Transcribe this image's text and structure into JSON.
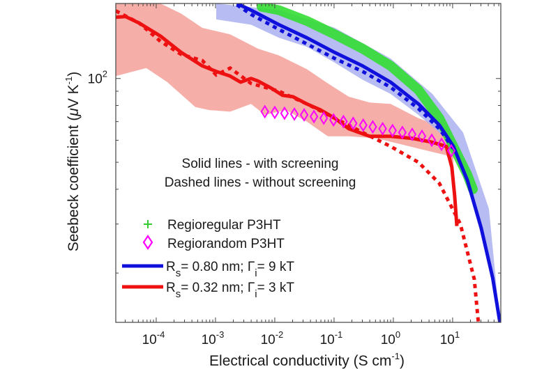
{
  "chart_data": {
    "type": "line",
    "xscale": "log",
    "yscale": "log",
    "xlabel": "Electrical conductivity (S cm",
    "xlabel_sup": "-1",
    "xlabel_close": ")",
    "ylabel": "Seebeck coefficient (",
    "ylabel_mu": "μ",
    "ylabel_unit": "V K",
    "ylabel_sup": "-1",
    "ylabel_close": ")",
    "xlim": [
      2.08e-05,
      65
    ],
    "ylim": [
      13.3,
      186
    ],
    "x_ticks": [
      {
        "value": 0.0001,
        "base": "10",
        "exp": "-4"
      },
      {
        "value": 0.001,
        "base": "10",
        "exp": "-3"
      },
      {
        "value": 0.01,
        "base": "10",
        "exp": "-2"
      },
      {
        "value": 0.1,
        "base": "10",
        "exp": "-1"
      },
      {
        "value": 1,
        "base": "10",
        "exp": "0"
      },
      {
        "value": 10,
        "base": "10",
        "exp": "1"
      }
    ],
    "y_ticks": [
      {
        "value": 100,
        "base": "10",
        "exp": "2"
      }
    ],
    "annotations": [
      "Solid lines - with screening",
      "Dashed lines - without screening"
    ],
    "legend": {
      "placement": "bottom-left",
      "entries": [
        {
          "label": "Regioregular  P3HT",
          "marker": "plus",
          "color": "#33cc33"
        },
        {
          "label": "Regiorandom P3HT",
          "marker": "diamond",
          "color": "#ff00ff"
        },
        {
          "label_pre": "R",
          "label_sub1": "s",
          "label_mid": "= 0.80 nm; Γ",
          "label_sub2": "i",
          "label_post": "= 9 kT",
          "marker": "line",
          "color": "#1010dd"
        },
        {
          "label_pre": "R",
          "label_sub1": "s",
          "label_mid": "= 0.32 nm; Γ",
          "label_sub2": "i",
          "label_post": "= 3 kT",
          "marker": "line",
          "color": "#ee1111"
        }
      ]
    },
    "series": [
      {
        "name": "Red band (Rs=0.32 nm)",
        "kind": "band",
        "color": "#f4a09a",
        "upper": [
          [
            2.08e-05,
            186
          ],
          [
            0.000118,
            186
          ],
          [
            0.000265,
            171
          ],
          [
            0.000598,
            152
          ],
          [
            0.00177,
            144
          ],
          [
            0.0052,
            128
          ],
          [
            0.0118,
            121
          ],
          [
            0.0348,
            108
          ],
          [
            0.0785,
            96
          ],
          [
            0.177,
            86
          ],
          [
            0.398,
            82
          ],
          [
            0.9,
            81
          ],
          [
            2.65,
            72
          ],
          [
            7.84,
            66
          ],
          [
            10.3,
            57
          ]
        ],
        "lower": [
          [
            2.08e-05,
            102
          ],
          [
            6.8e-05,
            109
          ],
          [
            0.000154,
            97
          ],
          [
            0.000456,
            79
          ],
          [
            0.000784,
            77
          ],
          [
            0.00177,
            76
          ],
          [
            0.00398,
            81
          ],
          [
            0.0068,
            74
          ],
          [
            0.0155,
            77
          ],
          [
            0.0348,
            70
          ],
          [
            0.0785,
            62
          ],
          [
            0.177,
            62
          ],
          [
            0.52,
            61
          ],
          [
            2.65,
            56
          ],
          [
            7.84,
            53
          ],
          [
            10.3,
            48
          ]
        ]
      },
      {
        "name": "Blue band (Rs=0.80 nm)",
        "kind": "band",
        "color": "#aab0f0",
        "upper": [
          [
            0.00103,
            186
          ],
          [
            0.0118,
            176
          ],
          [
            0.103,
            152
          ],
          [
            0.9,
            118
          ],
          [
            4.56,
            88
          ],
          [
            15,
            64
          ],
          [
            41,
            34
          ],
          [
            62.8,
            13.3
          ]
        ],
        "lower": [
          [
            0.00103,
            163
          ],
          [
            0.00398,
            156
          ],
          [
            0.0118,
            140
          ],
          [
            0.0348,
            130
          ],
          [
            0.103,
            114
          ],
          [
            0.303,
            99
          ],
          [
            0.9,
            88
          ],
          [
            2.65,
            74
          ],
          [
            7.84,
            61
          ],
          [
            15,
            48
          ],
          [
            30,
            30
          ],
          [
            62.8,
            13.3
          ]
        ]
      },
      {
        "name": "Regioregular P3HT",
        "kind": "markers-band",
        "color": "#33dd33",
        "points": [
          [
            0.00599,
            181
          ],
          [
            0.0118,
            176
          ],
          [
            0.0348,
            161
          ],
          [
            0.103,
            144
          ],
          [
            0.303,
            128
          ],
          [
            0.9,
            111
          ],
          [
            2.65,
            91
          ],
          [
            5.97,
            72
          ],
          [
            10.3,
            57
          ],
          [
            17.8,
            45
          ],
          [
            22,
            40
          ]
        ]
      },
      {
        "name": "Rs=0.80 nm solid",
        "kind": "solid",
        "color": "#1010dd",
        "points": [
          [
            0.0023,
            186
          ],
          [
            0.00398,
            176
          ],
          [
            0.0118,
            156
          ],
          [
            0.0348,
            140
          ],
          [
            0.103,
            124
          ],
          [
            0.303,
            111
          ],
          [
            0.9,
            97
          ],
          [
            2.65,
            81
          ],
          [
            5.97,
            68
          ],
          [
            10.3,
            57
          ],
          [
            17.8,
            43
          ],
          [
            30.4,
            29
          ],
          [
            47.5,
            19.2
          ],
          [
            62.8,
            13.3
          ]
        ]
      },
      {
        "name": "Rs=0.80 nm dashed",
        "kind": "dashed",
        "color": "#1010dd",
        "points": [
          [
            0.0023,
            184
          ],
          [
            0.00398,
            170
          ],
          [
            0.0118,
            150
          ],
          [
            0.0348,
            133
          ],
          [
            0.103,
            118
          ],
          [
            0.303,
            106
          ],
          [
            0.9,
            93
          ],
          [
            2.65,
            78
          ],
          [
            5.97,
            66
          ],
          [
            10.3,
            56
          ]
        ]
      },
      {
        "name": "Rs=0.32 nm solid",
        "kind": "solid",
        "color": "#ee1111",
        "points": [
          [
            2.08e-05,
            166
          ],
          [
            3.03e-05,
            167
          ],
          [
            5.2e-05,
            158
          ],
          [
            0.000118,
            142
          ],
          [
            0.000265,
            124
          ],
          [
            0.000598,
            111
          ],
          [
            0.00103,
            106
          ],
          [
            0.00177,
            102
          ],
          [
            0.00265,
            97
          ],
          [
            0.00398,
            100
          ],
          [
            0.0052,
            98
          ],
          [
            0.00897,
            92
          ],
          [
            0.0135,
            87
          ],
          [
            0.0202,
            86
          ],
          [
            0.0348,
            81
          ],
          [
            0.0598,
            77
          ],
          [
            0.103,
            72
          ],
          [
            0.177,
            66
          ],
          [
            0.398,
            62
          ],
          [
            0.9,
            62
          ],
          [
            2.02,
            61
          ],
          [
            4.56,
            59
          ],
          [
            7.84,
            57
          ],
          [
            9.7,
            48
          ],
          [
            10.8,
            38
          ],
          [
            11.8,
            29.5
          ]
        ]
      },
      {
        "name": "Rs=0.32 nm dashed",
        "kind": "dashed",
        "color": "#ee1111",
        "points": [
          [
            2.08e-05,
            175
          ],
          [
            5.2e-05,
            158
          ],
          [
            0.000118,
            136
          ],
          [
            0.000265,
            122
          ],
          [
            0.000598,
            116
          ],
          [
            0.00103,
            103
          ],
          [
            0.00177,
            109
          ],
          [
            0.00398,
            96
          ],
          [
            0.0118,
            90
          ],
          [
            0.0348,
            81
          ],
          [
            0.103,
            72
          ],
          [
            0.303,
            64
          ],
          [
            0.9,
            57
          ],
          [
            2.65,
            50
          ],
          [
            5.97,
            42
          ],
          [
            13.5,
            30
          ],
          [
            23.2,
            19
          ],
          [
            27.2,
            13.3
          ]
        ]
      },
      {
        "name": "Regiorandom P3HT",
        "kind": "diamonds",
        "color": "#ff00ff",
        "points": [
          [
            0.0068,
            76
          ],
          [
            0.01,
            75.5
          ],
          [
            0.0146,
            75
          ],
          [
            0.0214,
            74.5
          ],
          [
            0.0313,
            74
          ],
          [
            0.0458,
            73
          ],
          [
            0.067,
            72
          ],
          [
            0.098,
            71
          ],
          [
            0.144,
            70
          ],
          [
            0.21,
            69
          ],
          [
            0.31,
            68
          ],
          [
            0.45,
            67
          ],
          [
            0.66,
            66
          ],
          [
            0.97,
            65
          ],
          [
            1.42,
            64
          ],
          [
            2.08,
            63
          ],
          [
            3.04,
            62
          ],
          [
            4.45,
            60
          ],
          [
            6.5,
            58
          ],
          [
            9.5,
            55
          ]
        ]
      }
    ]
  }
}
